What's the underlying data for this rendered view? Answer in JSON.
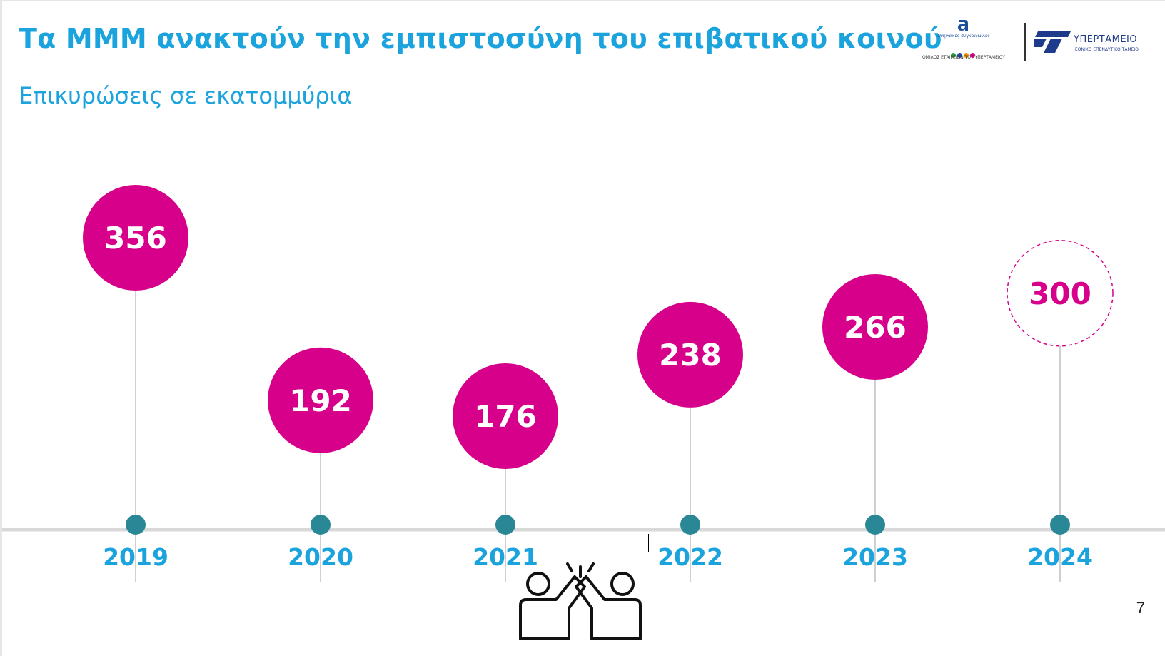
{
  "slide": {
    "title": "Τα ΜΜΜ ανακτούν την εμπιστοσύνη του επιβατικού κοινού",
    "subtitle": "Επικυρώσεις σε εκατομμύρια",
    "page_number": "7"
  },
  "logos": {
    "left_top_small": "αθηναϊκές συγκοινωνίες",
    "left_caption": "ΟΜΙΛΟΣ ΕΤΑΙΡΕΙΩΝ ΤΟΥ ΥΠΕΡΤΑΜΕΙΟΥ",
    "right_name": "ΥΠΕΡΤΑΜΕΙΟ",
    "right_caption": "ΕΘΝΙΚΟ ΕΠΕΝΔΥΤΙΚΟ ΤΑΜΕΙΟ",
    "right_icon": "hypertameio-stripes-icon",
    "left_icon": "oasa-a-icon"
  },
  "icons": {
    "high_five": "high-five-icon"
  },
  "colors": {
    "title": "#1aa3dc",
    "bubble": "#d6008a",
    "bubble_text": "#ffffff",
    "projected_border": "#d6008a",
    "projected_text": "#d6008a",
    "dot": "#2a8796",
    "axis": "#d9d9d9",
    "stem": "#d0d0d0",
    "year_label": "#1aa3dc"
  },
  "chart_data": {
    "type": "timeline",
    "categories": [
      "2019",
      "2020",
      "2021",
      "2022",
      "2023",
      "2024"
    ],
    "values": [
      356,
      192,
      176,
      238,
      266,
      300
    ],
    "labels": [
      "356",
      "192",
      "176",
      "238",
      "266",
      "300"
    ],
    "projected": [
      false,
      false,
      false,
      false,
      false,
      true
    ]
  }
}
